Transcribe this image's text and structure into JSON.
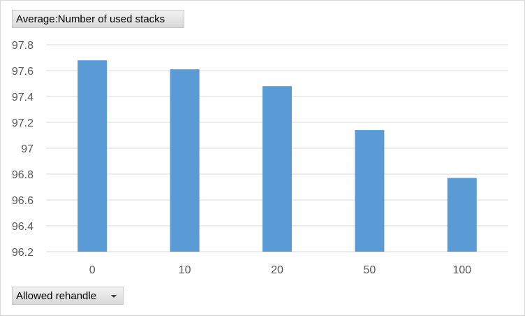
{
  "pivot": {
    "value_field_label": "Average:Number of used stacks",
    "axis_field_label": "Allowed rehandle",
    "dropdown_icon": "chevron-down-icon"
  },
  "colors": {
    "bar": "#5b9bd5",
    "gridline": "#d9d9d9",
    "tick_text": "#595959",
    "field_button": "#e0e0e0"
  },
  "chart_data": {
    "type": "bar",
    "categories": [
      "0",
      "10",
      "20",
      "50",
      "100"
    ],
    "values": [
      97.68,
      97.61,
      97.48,
      97.14,
      96.77
    ],
    "title": "",
    "xlabel": "",
    "ylabel": "",
    "ylim": [
      96.2,
      97.8
    ],
    "yticks": [
      "96.2",
      "96.4",
      "96.6",
      "96.8",
      "97",
      "97.2",
      "97.4",
      "97.6",
      "97.8"
    ],
    "grid": true,
    "legend": "none"
  }
}
